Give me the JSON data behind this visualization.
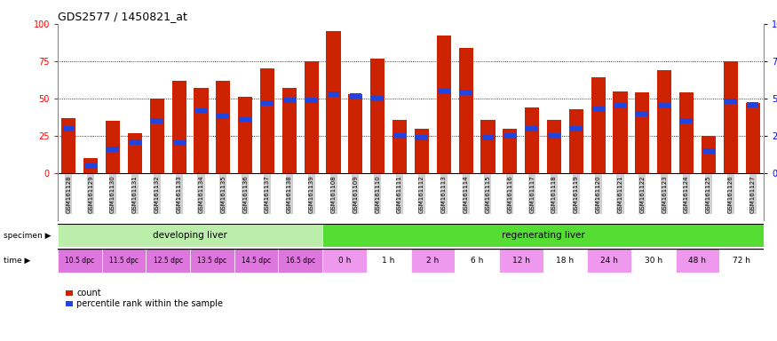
{
  "title": "GDS2577 / 1450821_at",
  "gsm_labels": [
    "GSM161128",
    "GSM161129",
    "GSM161130",
    "GSM161131",
    "GSM161132",
    "GSM161133",
    "GSM161134",
    "GSM161135",
    "GSM161136",
    "GSM161137",
    "GSM161138",
    "GSM161139",
    "GSM161108",
    "GSM161109",
    "GSM161110",
    "GSM161111",
    "GSM161112",
    "GSM161113",
    "GSM161114",
    "GSM161115",
    "GSM161116",
    "GSM161117",
    "GSM161118",
    "GSM161119",
    "GSM161120",
    "GSM161121",
    "GSM161122",
    "GSM161123",
    "GSM161124",
    "GSM161125",
    "GSM161126",
    "GSM161127"
  ],
  "count_values": [
    37,
    10,
    35,
    27,
    50,
    62,
    57,
    62,
    51,
    70,
    57,
    75,
    95,
    53,
    77,
    36,
    30,
    92,
    84,
    36,
    30,
    44,
    36,
    43,
    64,
    55,
    54,
    69,
    54,
    25,
    75,
    47
  ],
  "percentile_values": [
    30,
    5,
    16,
    21,
    35,
    20,
    42,
    38,
    36,
    47,
    49,
    49,
    53,
    52,
    50,
    25,
    24,
    55,
    54,
    24,
    25,
    30,
    25,
    30,
    43,
    45,
    40,
    45,
    35,
    15,
    48,
    46
  ],
  "bar_color": "#cc2200",
  "percentile_color": "#2244dd",
  "ylim": [
    0,
    100
  ],
  "yticks": [
    0,
    25,
    50,
    75,
    100
  ],
  "grid_lines": [
    25,
    50,
    75
  ],
  "dev_liver_color": "#bbeeaa",
  "reg_liver_color": "#55dd33",
  "time_dpc_color": "#dd77dd",
  "time_h_alt1": "#ee99ee",
  "time_h_alt2": "#ffffff",
  "tick_bg_color": "#d0d0d0",
  "time_labels_dpc": [
    "10.5 dpc",
    "11.5 dpc",
    "12.5 dpc",
    "13.5 dpc",
    "14.5 dpc",
    "16.5 dpc"
  ],
  "time_labels_h": [
    "0 h",
    "1 h",
    "2 h",
    "6 h",
    "12 h",
    "18 h",
    "24 h",
    "30 h",
    "48 h",
    "72 h"
  ],
  "time_bars_per_label_dpc": [
    2,
    2,
    2,
    2,
    2,
    2
  ],
  "time_bars_per_label_h": [
    2,
    2,
    2,
    2,
    2,
    2,
    2,
    2,
    2,
    2
  ],
  "legend_count": "count",
  "legend_pct": "percentile rank within the sample"
}
